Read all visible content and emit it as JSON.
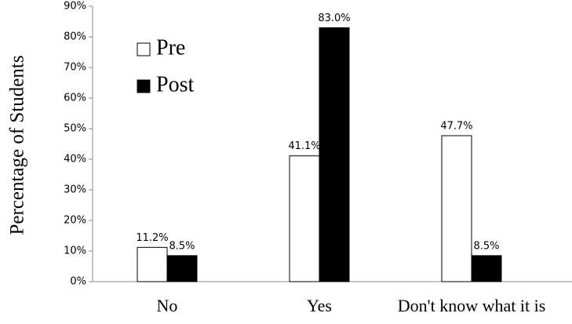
{
  "chart_data": {
    "type": "bar",
    "y_label": "Percentage of Students",
    "categories": [
      "No",
      "Yes",
      "Don't know what it is"
    ],
    "series": [
      {
        "name": "Pre",
        "color": "#ffffff",
        "values": [
          11.2,
          41.1,
          47.7
        ],
        "value_labels": [
          "11.2%",
          "41.1%",
          "47.7%"
        ]
      },
      {
        "name": "Post",
        "color": "#000000",
        "values": [
          8.5,
          83.0,
          8.5
        ],
        "value_labels": [
          "8.5%",
          "83.0%",
          "8.5%"
        ]
      }
    ],
    "ylim": [
      0,
      90
    ],
    "yticks": [
      {
        "value": 0,
        "label": "0%"
      },
      {
        "value": 10,
        "label": "10%"
      },
      {
        "value": 20,
        "label": "20%"
      },
      {
        "value": 30,
        "label": "30%"
      },
      {
        "value": 40,
        "label": "40%"
      },
      {
        "value": 50,
        "label": "50%"
      },
      {
        "value": 60,
        "label": "60%"
      },
      {
        "value": 70,
        "label": "70%"
      },
      {
        "value": 80,
        "label": "80%"
      },
      {
        "value": 90,
        "label": "90%"
      }
    ],
    "grid": false,
    "legend": "upper left"
  }
}
